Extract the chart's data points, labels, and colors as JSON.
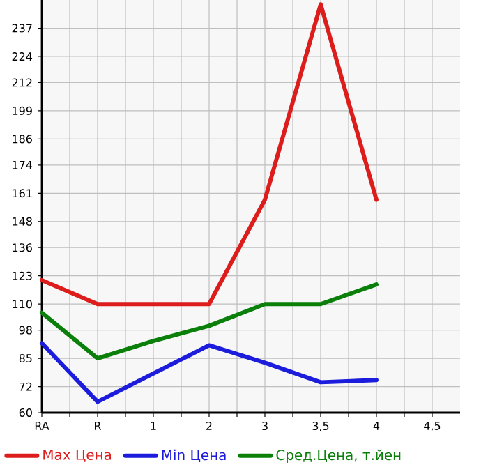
{
  "chart_data": {
    "type": "line",
    "categories": [
      "RA",
      "R",
      "1",
      "2",
      "3",
      "3,5",
      "4",
      "4,5"
    ],
    "series": [
      {
        "name": "Max Цена",
        "color": "#dd1c1c",
        "values": [
          121,
          110,
          110,
          110,
          158,
          248,
          158,
          null
        ]
      },
      {
        "name": "Min Цена",
        "color": "#1c1cdd",
        "values": [
          92,
          65,
          78,
          91,
          83,
          74,
          75,
          null
        ]
      },
      {
        "name": "Сред.Цена, т.йен",
        "color": "#0a800a",
        "values": [
          106,
          85,
          93,
          100,
          110,
          110,
          119,
          null
        ]
      }
    ],
    "ylim": [
      60,
      250
    ],
    "yticks": [
      60,
      72,
      85,
      98,
      110,
      123,
      136,
      148,
      161,
      174,
      186,
      199,
      212,
      224,
      237
    ],
    "grid": true,
    "legend": "bottom",
    "marker": "none",
    "line_style": "solid"
  }
}
